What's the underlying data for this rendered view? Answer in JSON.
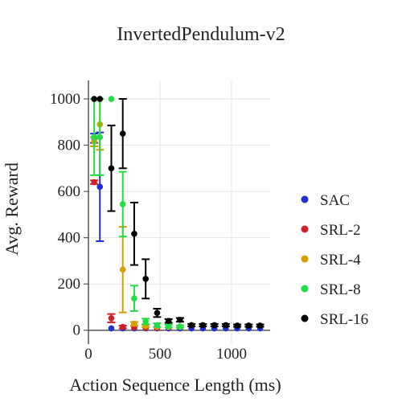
{
  "chart_data": {
    "type": "scatter",
    "title": "InvertedPendulum-v2",
    "xlabel": "Action Sequence Length (ms)",
    "ylabel": "Avg. Reward",
    "xlim": [
      0,
      1270
    ],
    "ylim": [
      -60,
      1080
    ],
    "xticks": [
      0,
      500,
      1000
    ],
    "yticks": [
      0,
      200,
      400,
      600,
      800,
      1000
    ],
    "grid": true,
    "legend_position": "right",
    "series": [
      {
        "name": "SAC",
        "color": "#1f2fd0",
        "points": [
          {
            "x": 40,
            "y": 830,
            "err": 20
          },
          {
            "x": 80,
            "y": 620,
            "err": 235
          },
          {
            "x": 160,
            "y": 8,
            "err": 3
          },
          {
            "x": 240,
            "y": 8,
            "err": 3
          },
          {
            "x": 320,
            "y": 8,
            "err": 3
          },
          {
            "x": 400,
            "y": 8,
            "err": 3
          },
          {
            "x": 480,
            "y": 8,
            "err": 3
          },
          {
            "x": 560,
            "y": 8,
            "err": 3
          },
          {
            "x": 640,
            "y": 8,
            "err": 3
          },
          {
            "x": 720,
            "y": 8,
            "err": 3
          },
          {
            "x": 800,
            "y": 8,
            "err": 3
          },
          {
            "x": 880,
            "y": 8,
            "err": 3
          },
          {
            "x": 960,
            "y": 8,
            "err": 3
          },
          {
            "x": 1040,
            "y": 8,
            "err": 3
          },
          {
            "x": 1120,
            "y": 8,
            "err": 3
          },
          {
            "x": 1200,
            "y": 8,
            "err": 3
          }
        ]
      },
      {
        "name": "SRL-2",
        "color": "#d0202a",
        "points": [
          {
            "x": 40,
            "y": 640,
            "err": 8
          },
          {
            "x": 160,
            "y": 52,
            "err": 18
          },
          {
            "x": 240,
            "y": 14,
            "err": 6
          },
          {
            "x": 320,
            "y": 12,
            "err": 4
          },
          {
            "x": 400,
            "y": 10,
            "err": 3
          },
          {
            "x": 480,
            "y": 10,
            "err": 3
          }
        ]
      },
      {
        "name": "SRL-4",
        "color": "#d4a000",
        "points": [
          {
            "x": 40,
            "y": 815,
            "err": 20
          },
          {
            "x": 80,
            "y": 890,
            "err": 110
          },
          {
            "x": 240,
            "y": 262,
            "err": 185
          },
          {
            "x": 320,
            "y": 28,
            "err": 8
          },
          {
            "x": 400,
            "y": 18,
            "err": 5
          },
          {
            "x": 480,
            "y": 15,
            "err": 4
          },
          {
            "x": 560,
            "y": 14,
            "err": 4
          },
          {
            "x": 640,
            "y": 14,
            "err": 4
          }
        ]
      },
      {
        "name": "SRL-8",
        "color": "#22dd44",
        "points": [
          {
            "x": 40,
            "y": 835,
            "err": 165
          },
          {
            "x": 80,
            "y": 835,
            "err": 165
          },
          {
            "x": 160,
            "y": 1000,
            "err": 2
          },
          {
            "x": 240,
            "y": 545,
            "err": 140
          },
          {
            "x": 320,
            "y": 138,
            "err": 55
          },
          {
            "x": 400,
            "y": 38,
            "err": 12
          },
          {
            "x": 480,
            "y": 22,
            "err": 8
          },
          {
            "x": 560,
            "y": 18,
            "err": 6
          },
          {
            "x": 640,
            "y": 16,
            "err": 5
          }
        ]
      },
      {
        "name": "SRL-16",
        "color": "#000000",
        "points": [
          {
            "x": 40,
            "y": 1000,
            "err": 2
          },
          {
            "x": 80,
            "y": 1000,
            "err": 2
          },
          {
            "x": 160,
            "y": 700,
            "err": 185
          },
          {
            "x": 240,
            "y": 850,
            "err": 150
          },
          {
            "x": 320,
            "y": 417,
            "err": 135
          },
          {
            "x": 400,
            "y": 222,
            "err": 85
          },
          {
            "x": 480,
            "y": 75,
            "err": 18
          },
          {
            "x": 560,
            "y": 40,
            "err": 8
          },
          {
            "x": 640,
            "y": 45,
            "err": 8
          },
          {
            "x": 720,
            "y": 22,
            "err": 5
          },
          {
            "x": 800,
            "y": 22,
            "err": 5
          },
          {
            "x": 880,
            "y": 22,
            "err": 5
          },
          {
            "x": 960,
            "y": 22,
            "err": 5
          },
          {
            "x": 1040,
            "y": 20,
            "err": 5
          },
          {
            "x": 1120,
            "y": 20,
            "err": 5
          },
          {
            "x": 1200,
            "y": 20,
            "err": 5
          }
        ]
      }
    ]
  }
}
